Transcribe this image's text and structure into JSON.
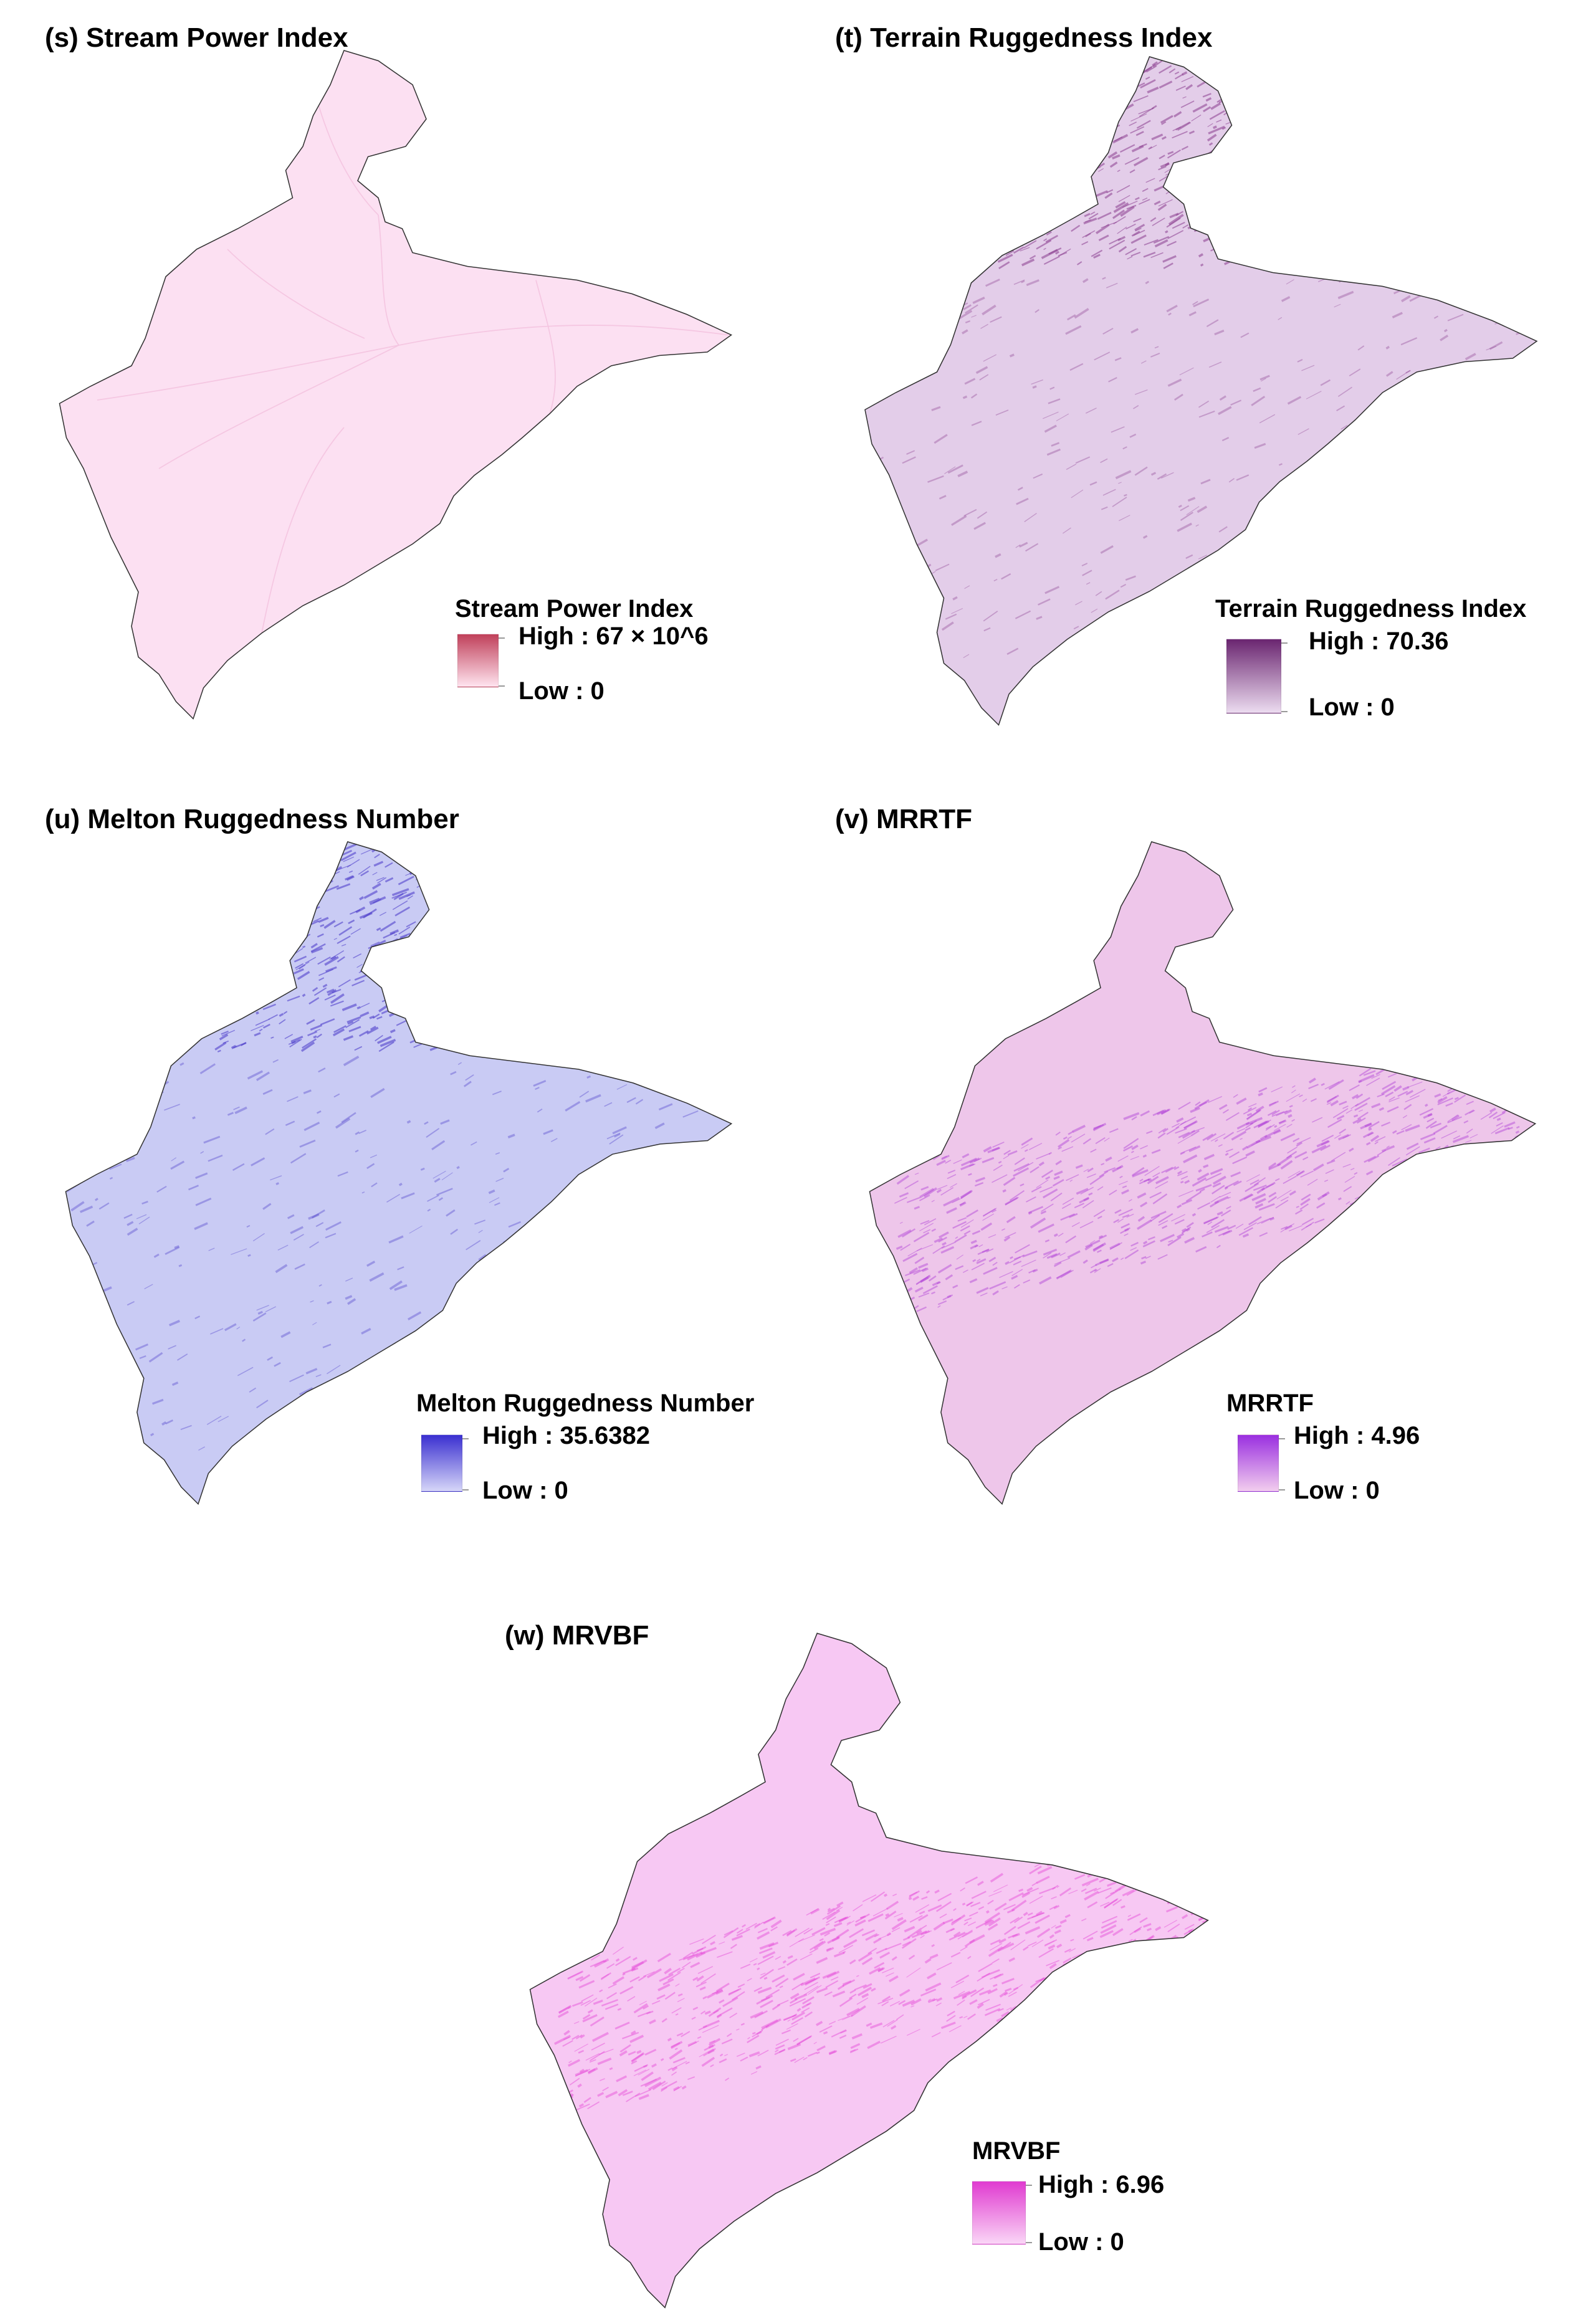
{
  "panels": [
    {
      "id": "s",
      "title": "(s) Stream Power Index",
      "legend_title": "Stream Power Index",
      "high_label": "High : 67 × 10^6",
      "low_label": "Low : 0",
      "colors": {
        "fill": "#fce0f2",
        "high": "#c0405a",
        "low": "#ffe4ef",
        "texture": "#f4c4e0"
      }
    },
    {
      "id": "t",
      "title": "(t) Terrain Ruggedness Index",
      "legend_title": "Terrain Ruggedness Index",
      "high_label": "High : 70.36",
      "low_label": "Low : 0",
      "colors": {
        "fill": "#e3cde9",
        "high": "#6a2570",
        "low": "#ecdcf0",
        "texture": "#8a3d8f"
      }
    },
    {
      "id": "u",
      "title": "(u) Melton Ruggedness Number",
      "legend_title": "Melton Ruggedness Number",
      "high_label": "High : 35.6382",
      "low_label": "Low : 0",
      "colors": {
        "fill": "#c9cbf4",
        "high": "#3a2fd0",
        "low": "#d6d6f8",
        "texture": "#4636c8"
      }
    },
    {
      "id": "v",
      "title": "(v) MRRTF",
      "legend_title": "MRRTF",
      "high_label": "High : 4.96",
      "low_label": "Low : 0",
      "colors": {
        "fill": "#eec6ea",
        "high": "#9a2fe0",
        "low": "#f2cdee",
        "texture": "#b040d8"
      }
    },
    {
      "id": "w",
      "title": "(w) MRVBF",
      "legend_title": "MRVBF",
      "high_label": "High : 6.96",
      "low_label": "Low : 0",
      "colors": {
        "fill": "#f7c8f3",
        "high": "#e03ad0",
        "low": "#fad6f6",
        "texture": "#e548d8"
      }
    }
  ]
}
